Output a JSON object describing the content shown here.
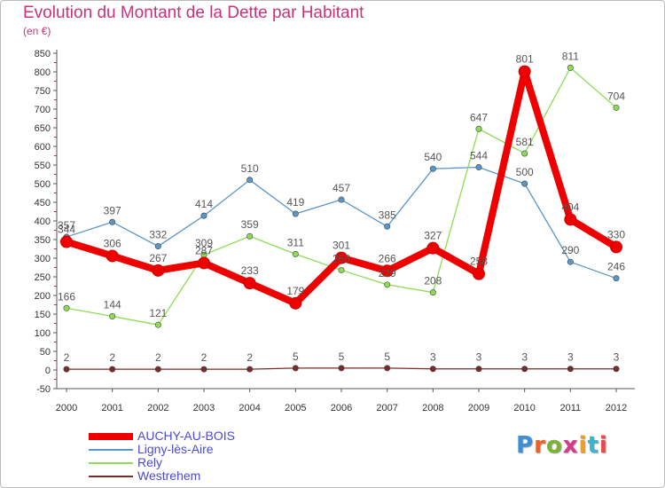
{
  "title": "Evolution du Montant de la Dette par Habitant",
  "subtitle": "(en €)",
  "brand": {
    "text": "Proxiti",
    "letter_colors": [
      "#3a8fd8",
      "#e8632a",
      "#7ab531",
      "#d93a8e",
      "#f0a020",
      "#3ab5d0",
      "#e84a4a"
    ]
  },
  "chart_data": {
    "type": "line",
    "x": [
      "2000",
      "2001",
      "2002",
      "2003",
      "2004",
      "2005",
      "2006",
      "2007",
      "2008",
      "2009",
      "2010",
      "2011",
      "2012"
    ],
    "ylim": [
      -50,
      850
    ],
    "yticks": [
      -50,
      0,
      50,
      100,
      150,
      200,
      250,
      300,
      350,
      400,
      450,
      500,
      550,
      600,
      650,
      700,
      750,
      800,
      850
    ],
    "grid": false,
    "legend_position": "bottom-left",
    "series": [
      {
        "name": "AUCHY-AU-BOIS",
        "color": "#ee0000",
        "values": [
          344,
          306,
          267,
          287,
          233,
          179,
          301,
          266,
          327,
          258,
          801,
          404,
          330
        ],
        "labels": [
          "344",
          "306",
          "267",
          "287",
          "233",
          "179",
          "301",
          "266",
          "327",
          "258",
          "801",
          "404",
          "330"
        ]
      },
      {
        "name": "Ligny-lès-Aire",
        "color": "#5b96c8",
        "values": [
          357,
          397,
          332,
          414,
          510,
          419,
          457,
          385,
          540,
          544,
          500,
          290,
          246
        ],
        "labels": [
          "357",
          "397",
          "332",
          "414",
          "510",
          "419",
          "457",
          "385",
          "540",
          "544",
          "500",
          "290",
          "246"
        ]
      },
      {
        "name": "Rely",
        "color": "#8edc55",
        "values": [
          166,
          144,
          121,
          309,
          359,
          311,
          268,
          229,
          208,
          647,
          581,
          811,
          704
        ],
        "labels": [
          "166",
          "144",
          "121",
          "309",
          "359",
          "311",
          "268",
          "229",
          "208",
          "647",
          "581",
          "811",
          "704"
        ]
      },
      {
        "name": "Westrehem",
        "color": "#7a2a2a",
        "values": [
          2,
          2,
          2,
          2,
          2,
          5,
          5,
          5,
          3,
          3,
          3,
          3,
          3
        ],
        "labels": [
          "2",
          "2",
          "2",
          "2",
          "2",
          "5",
          "5",
          "5",
          "3",
          "3",
          "3",
          "3",
          "3"
        ]
      }
    ]
  }
}
